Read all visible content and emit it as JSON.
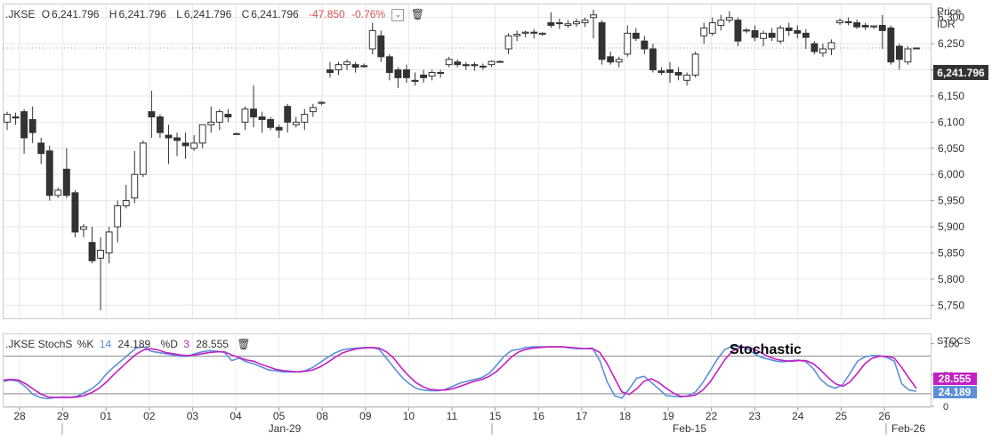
{
  "header": {
    "symbol": ".JKSE",
    "o_label": "O",
    "o_value": "6,241.796",
    "h_label": "H",
    "h_value": "6,241.796",
    "l_label": "L",
    "l_value": "6,241.796",
    "c_label": "C",
    "c_value": "6,241.796",
    "change": "-47.850",
    "change_pct": "-0.76%"
  },
  "price_axis": {
    "title": "Price",
    "currency": "IDR",
    "last_label": "6,241.796"
  },
  "stoch_header": {
    "symbol": ".JKSE",
    "name": "StochS",
    "k_label": "%K",
    "k_period": "14",
    "k_value": "24.189",
    "d_label": "%D",
    "d_period": "3",
    "d_value": "28.555"
  },
  "stoch_axis": {
    "title": "STOCS",
    "k_badge": "24.189",
    "d_badge": "28.555"
  },
  "annotation": "Stochastic",
  "x_axis": {
    "ticks": [
      "28",
      "29",
      "01",
      "02",
      "03",
      "04",
      "05",
      "08",
      "09",
      "10",
      "11",
      "15",
      "16",
      "17",
      "18",
      "19",
      "22",
      "23",
      "24",
      "25",
      "26"
    ],
    "major": [
      "Jan-29",
      "Feb-15",
      "Feb-26"
    ]
  },
  "colors": {
    "k_line": "#5b8fd9",
    "d_line": "#c41ec4",
    "bull_body": "#ffffff",
    "bear_body": "#333333",
    "neg_text": "#d9534f"
  },
  "chart_data": [
    {
      "type": "candlestick",
      "title": "",
      "ylabel": "Price IDR",
      "ylim": [
        5725,
        6325
      ],
      "yticks": [
        5750,
        5800,
        5850,
        5900,
        5950,
        6000,
        6050,
        6100,
        6150,
        6200,
        6250,
        6300
      ],
      "last": 6241.796,
      "grid": true,
      "ohlc": [
        [
          6100,
          6120,
          6085,
          6115
        ],
        [
          6110,
          6118,
          6095,
          6108
        ],
        [
          6120,
          6125,
          6040,
          6070
        ],
        [
          6105,
          6130,
          6060,
          6080
        ],
        [
          6060,
          6070,
          6020,
          6040
        ],
        [
          6045,
          6055,
          5950,
          5960
        ],
        [
          5960,
          5975,
          5955,
          5970
        ],
        [
          6010,
          6050,
          5955,
          5960
        ],
        [
          5965,
          5970,
          5880,
          5890
        ],
        [
          5895,
          5905,
          5880,
          5900
        ],
        [
          5870,
          5900,
          5830,
          5835
        ],
        [
          5840,
          5880,
          5740,
          5855
        ],
        [
          5850,
          5900,
          5830,
          5890
        ],
        [
          5900,
          5950,
          5870,
          5940
        ],
        [
          5940,
          5980,
          5935,
          5950
        ],
        [
          5955,
          6045,
          5945,
          6000
        ],
        [
          6000,
          6065,
          5995,
          6060
        ],
        [
          6120,
          6160,
          6070,
          6110
        ],
        [
          6110,
          6115,
          6070,
          6080
        ],
        [
          6075,
          6095,
          6020,
          6070
        ],
        [
          6070,
          6080,
          6035,
          6065
        ],
        [
          6060,
          6080,
          6030,
          6055
        ],
        [
          6050,
          6075,
          6045,
          6060
        ],
        [
          6060,
          6090,
          6050,
          6095
        ],
        [
          6095,
          6130,
          6080,
          6100
        ],
        [
          6100,
          6125,
          6085,
          6120
        ],
        [
          6115,
          6125,
          6100,
          6110
        ],
        [
          6078,
          6080,
          6076,
          6078
        ],
        [
          6100,
          6130,
          6085,
          6125
        ],
        [
          6125,
          6170,
          6090,
          6110
        ],
        [
          6110,
          6120,
          6080,
          6105
        ],
        [
          6105,
          6110,
          6085,
          6090
        ],
        [
          6090,
          6095,
          6070,
          6085
        ],
        [
          6130,
          6135,
          6080,
          6100
        ],
        [
          6095,
          6110,
          6090,
          6100
        ],
        [
          6100,
          6125,
          6085,
          6115
        ],
        [
          6120,
          6135,
          6110,
          6128
        ],
        [
          6136,
          6140,
          6132,
          6138
        ],
        [
          6200,
          6215,
          6185,
          6195
        ],
        [
          6200,
          6215,
          6190,
          6210
        ],
        [
          6210,
          6220,
          6200,
          6215
        ],
        [
          6210,
          6215,
          6195,
          6205
        ],
        [
          6208,
          6212,
          6204,
          6206
        ],
        [
          6240,
          6290,
          6230,
          6275
        ],
        [
          6265,
          6275,
          6215,
          6225
        ],
        [
          6225,
          6230,
          6180,
          6195
        ],
        [
          6200,
          6205,
          6165,
          6185
        ],
        [
          6200,
          6210,
          6175,
          6185
        ],
        [
          6180,
          6195,
          6170,
          6178
        ],
        [
          6190,
          6200,
          6175,
          6185
        ],
        [
          6188,
          6200,
          6180,
          6195
        ],
        [
          6195,
          6200,
          6185,
          6195
        ],
        [
          6210,
          6225,
          6205,
          6220
        ],
        [
          6215,
          6220,
          6205,
          6210
        ],
        [
          6210,
          6215,
          6200,
          6208
        ],
        [
          6210,
          6215,
          6198,
          6208
        ],
        [
          6206,
          6212,
          6200,
          6207
        ],
        [
          6210,
          6218,
          6205,
          6216
        ],
        [
          6216,
          6218,
          6214,
          6216
        ],
        [
          6240,
          6270,
          6230,
          6265
        ],
        [
          6265,
          6275,
          6255,
          6268
        ],
        [
          6270,
          6275,
          6262,
          6272
        ],
        [
          6272,
          6278,
          6260,
          6270
        ],
        [
          6268,
          6272,
          6265,
          6270
        ],
        [
          6290,
          6310,
          6280,
          6285
        ],
        [
          6290,
          6298,
          6278,
          6290
        ],
        [
          6285,
          6295,
          6280,
          6288
        ],
        [
          6288,
          6298,
          6282,
          6292
        ],
        [
          6290,
          6300,
          6282,
          6295
        ],
        [
          6300,
          6315,
          6260,
          6305
        ],
        [
          6290,
          6295,
          6210,
          6220
        ],
        [
          6225,
          6235,
          6210,
          6215
        ],
        [
          6215,
          6225,
          6205,
          6220
        ],
        [
          6230,
          6285,
          6225,
          6270
        ],
        [
          6270,
          6280,
          6255,
          6260
        ],
        [
          6255,
          6265,
          6230,
          6240
        ],
        [
          6240,
          6250,
          6195,
          6200
        ],
        [
          6198,
          6205,
          6190,
          6195
        ],
        [
          6200,
          6215,
          6175,
          6195
        ],
        [
          6195,
          6205,
          6180,
          6190
        ],
        [
          6180,
          6195,
          6170,
          6190
        ],
        [
          6190,
          6235,
          6185,
          6230
        ],
        [
          6265,
          6290,
          6250,
          6280
        ],
        [
          6270,
          6300,
          6265,
          6290
        ],
        [
          6285,
          6305,
          6275,
          6295
        ],
        [
          6295,
          6312,
          6290,
          6300
        ],
        [
          6295,
          6300,
          6245,
          6255
        ],
        [
          6275,
          6280,
          6270,
          6276
        ],
        [
          6275,
          6285,
          6255,
          6262
        ],
        [
          6260,
          6275,
          6245,
          6270
        ],
        [
          6270,
          6280,
          6255,
          6262
        ],
        [
          6255,
          6285,
          6250,
          6280
        ],
        [
          6280,
          6290,
          6265,
          6275
        ],
        [
          6275,
          6285,
          6260,
          6270
        ],
        [
          6270,
          6278,
          6240,
          6262
        ],
        [
          6250,
          6255,
          6230,
          6235
        ],
        [
          6232,
          6250,
          6225,
          6240
        ],
        [
          6240,
          6258,
          6228,
          6252
        ],
        [
          6290,
          6298,
          6286,
          6294
        ],
        [
          6292,
          6300,
          6285,
          6290
        ],
        [
          6290,
          6296,
          6278,
          6282
        ],
        [
          6285,
          6290,
          6276,
          6282
        ],
        [
          6282,
          6285,
          6278,
          6284
        ],
        [
          6285,
          6305,
          6240,
          6275
        ],
        [
          6280,
          6285,
          6210,
          6215
        ],
        [
          6245,
          6250,
          6200,
          6220
        ],
        [
          6215,
          6245,
          6210,
          6240
        ],
        [
          6241.796,
          6241.796,
          6241.796,
          6241.796
        ]
      ]
    },
    {
      "type": "line",
      "title": "",
      "ylabel": "STOCS",
      "ylim": [
        0,
        115
      ],
      "yticks": [
        100,
        50,
        0
      ],
      "ref_lines": [
        20,
        80
      ],
      "series": [
        {
          "name": "%K",
          "color": "#5b8fd9",
          "values": [
            40,
            42,
            40,
            31,
            19,
            14,
            12,
            14,
            15,
            14,
            16,
            22,
            28,
            38,
            52,
            63,
            73,
            83,
            93,
            95,
            88,
            86,
            84,
            82,
            80,
            80,
            84,
            87,
            89,
            88,
            86,
            73,
            77,
            71,
            68,
            63,
            58,
            57,
            55,
            55,
            55,
            57,
            62,
            70,
            78,
            85,
            90,
            92,
            93,
            94,
            94,
            91,
            77,
            62,
            48,
            37,
            29,
            26,
            25,
            25,
            27,
            32,
            37,
            40,
            43,
            46,
            53,
            66,
            80,
            89,
            91,
            94,
            95,
            95,
            95,
            95,
            95,
            93,
            92,
            92,
            93,
            73,
            39,
            17,
            13,
            28,
            45,
            48,
            38,
            28,
            17,
            16,
            15,
            17,
            23,
            38,
            57,
            76,
            91,
            96,
            96,
            92,
            84,
            78,
            75,
            72,
            71,
            73,
            74,
            71,
            60,
            43,
            33,
            29,
            35,
            53,
            72,
            79,
            81,
            81,
            78,
            72,
            36,
            26,
            24
          ]
        },
        {
          "name": "%D",
          "color": "#c41ec4",
          "values": [
            42,
            43,
            42,
            36,
            28,
            20,
            15,
            14,
            14,
            14,
            15,
            17,
            22,
            29,
            39,
            51,
            62,
            73,
            83,
            90,
            92,
            90,
            86,
            84,
            82,
            81,
            82,
            84,
            86,
            87,
            87,
            82,
            78,
            74,
            72,
            67,
            63,
            59,
            57,
            56,
            55,
            56,
            58,
            63,
            70,
            78,
            85,
            89,
            92,
            93,
            94,
            93,
            87,
            77,
            62,
            49,
            38,
            31,
            27,
            26,
            26,
            28,
            32,
            36,
            40,
            43,
            48,
            56,
            67,
            79,
            87,
            91,
            93,
            94,
            95,
            95,
            95,
            94,
            93,
            92,
            92,
            86,
            68,
            45,
            23,
            19,
            28,
            40,
            44,
            38,
            29,
            21,
            16,
            16,
            18,
            26,
            39,
            57,
            75,
            88,
            94,
            95,
            91,
            85,
            79,
            75,
            73,
            72,
            73,
            73,
            68,
            58,
            46,
            36,
            32,
            39,
            53,
            68,
            77,
            80,
            80,
            77,
            62,
            45,
            28.555
          ]
        }
      ],
      "last_k": 24.189,
      "last_d": 28.555
    }
  ]
}
